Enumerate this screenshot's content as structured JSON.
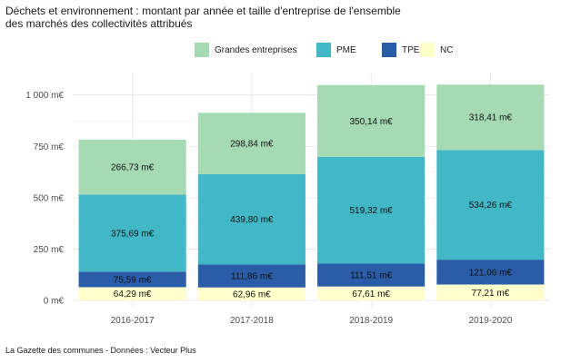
{
  "title_line1": "Déchets et environnement : montant par année et taille d'entreprise de l'ensemble",
  "title_line2": "des marchés des collectivités attribués",
  "source": "La Gazette des communes - Données : Vecteur Plus",
  "chart_data": {
    "type": "bar",
    "stacked": true,
    "title": "Déchets et environnement : montant par année et taille d'entreprise de l'ensemble des marchés des collectivités attribués",
    "xlabel": "",
    "ylabel": "",
    "categories": [
      "2016-2017",
      "2017-2018",
      "2018-2019",
      "2019-2020"
    ],
    "ylim": [
      0,
      1100
    ],
    "yticks": [
      0,
      250,
      500,
      750,
      1000
    ],
    "ytick_labels": [
      "0 m€",
      "250 m€",
      "500 m€",
      "750 m€",
      "1 000 m€"
    ],
    "grid": true,
    "legend_position": "top",
    "stack_order": [
      "NC",
      "TPE",
      "PME",
      "Grandes entreprises"
    ],
    "series": [
      {
        "name": "Grandes entreprises",
        "color": "#a5dab4",
        "values": [
          266.73,
          298.84,
          350.14,
          318.41
        ],
        "labels": [
          "266,73 m€",
          "298,84 m€",
          "350,14 m€",
          "318,41 m€"
        ]
      },
      {
        "name": "PME",
        "color": "#42b7c6",
        "values": [
          375.69,
          439.8,
          519.32,
          534.26
        ],
        "labels": [
          "375,69 m€",
          "439,80 m€",
          "519,32 m€",
          "534,26 m€"
        ]
      },
      {
        "name": "TPE",
        "color": "#2a5ca8",
        "values": [
          75.59,
          111.86,
          111.51,
          121.06
        ],
        "labels": [
          "75,59 m€",
          "111,86 m€",
          "111,51 m€",
          "121,06 m€"
        ]
      },
      {
        "name": "NC",
        "color": "#ffffcc",
        "values": [
          64.29,
          62.96,
          67.61,
          77.21
        ],
        "labels": [
          "64,29 m€",
          "62,96 m€",
          "67,61 m€",
          "77,21 m€"
        ]
      }
    ]
  }
}
